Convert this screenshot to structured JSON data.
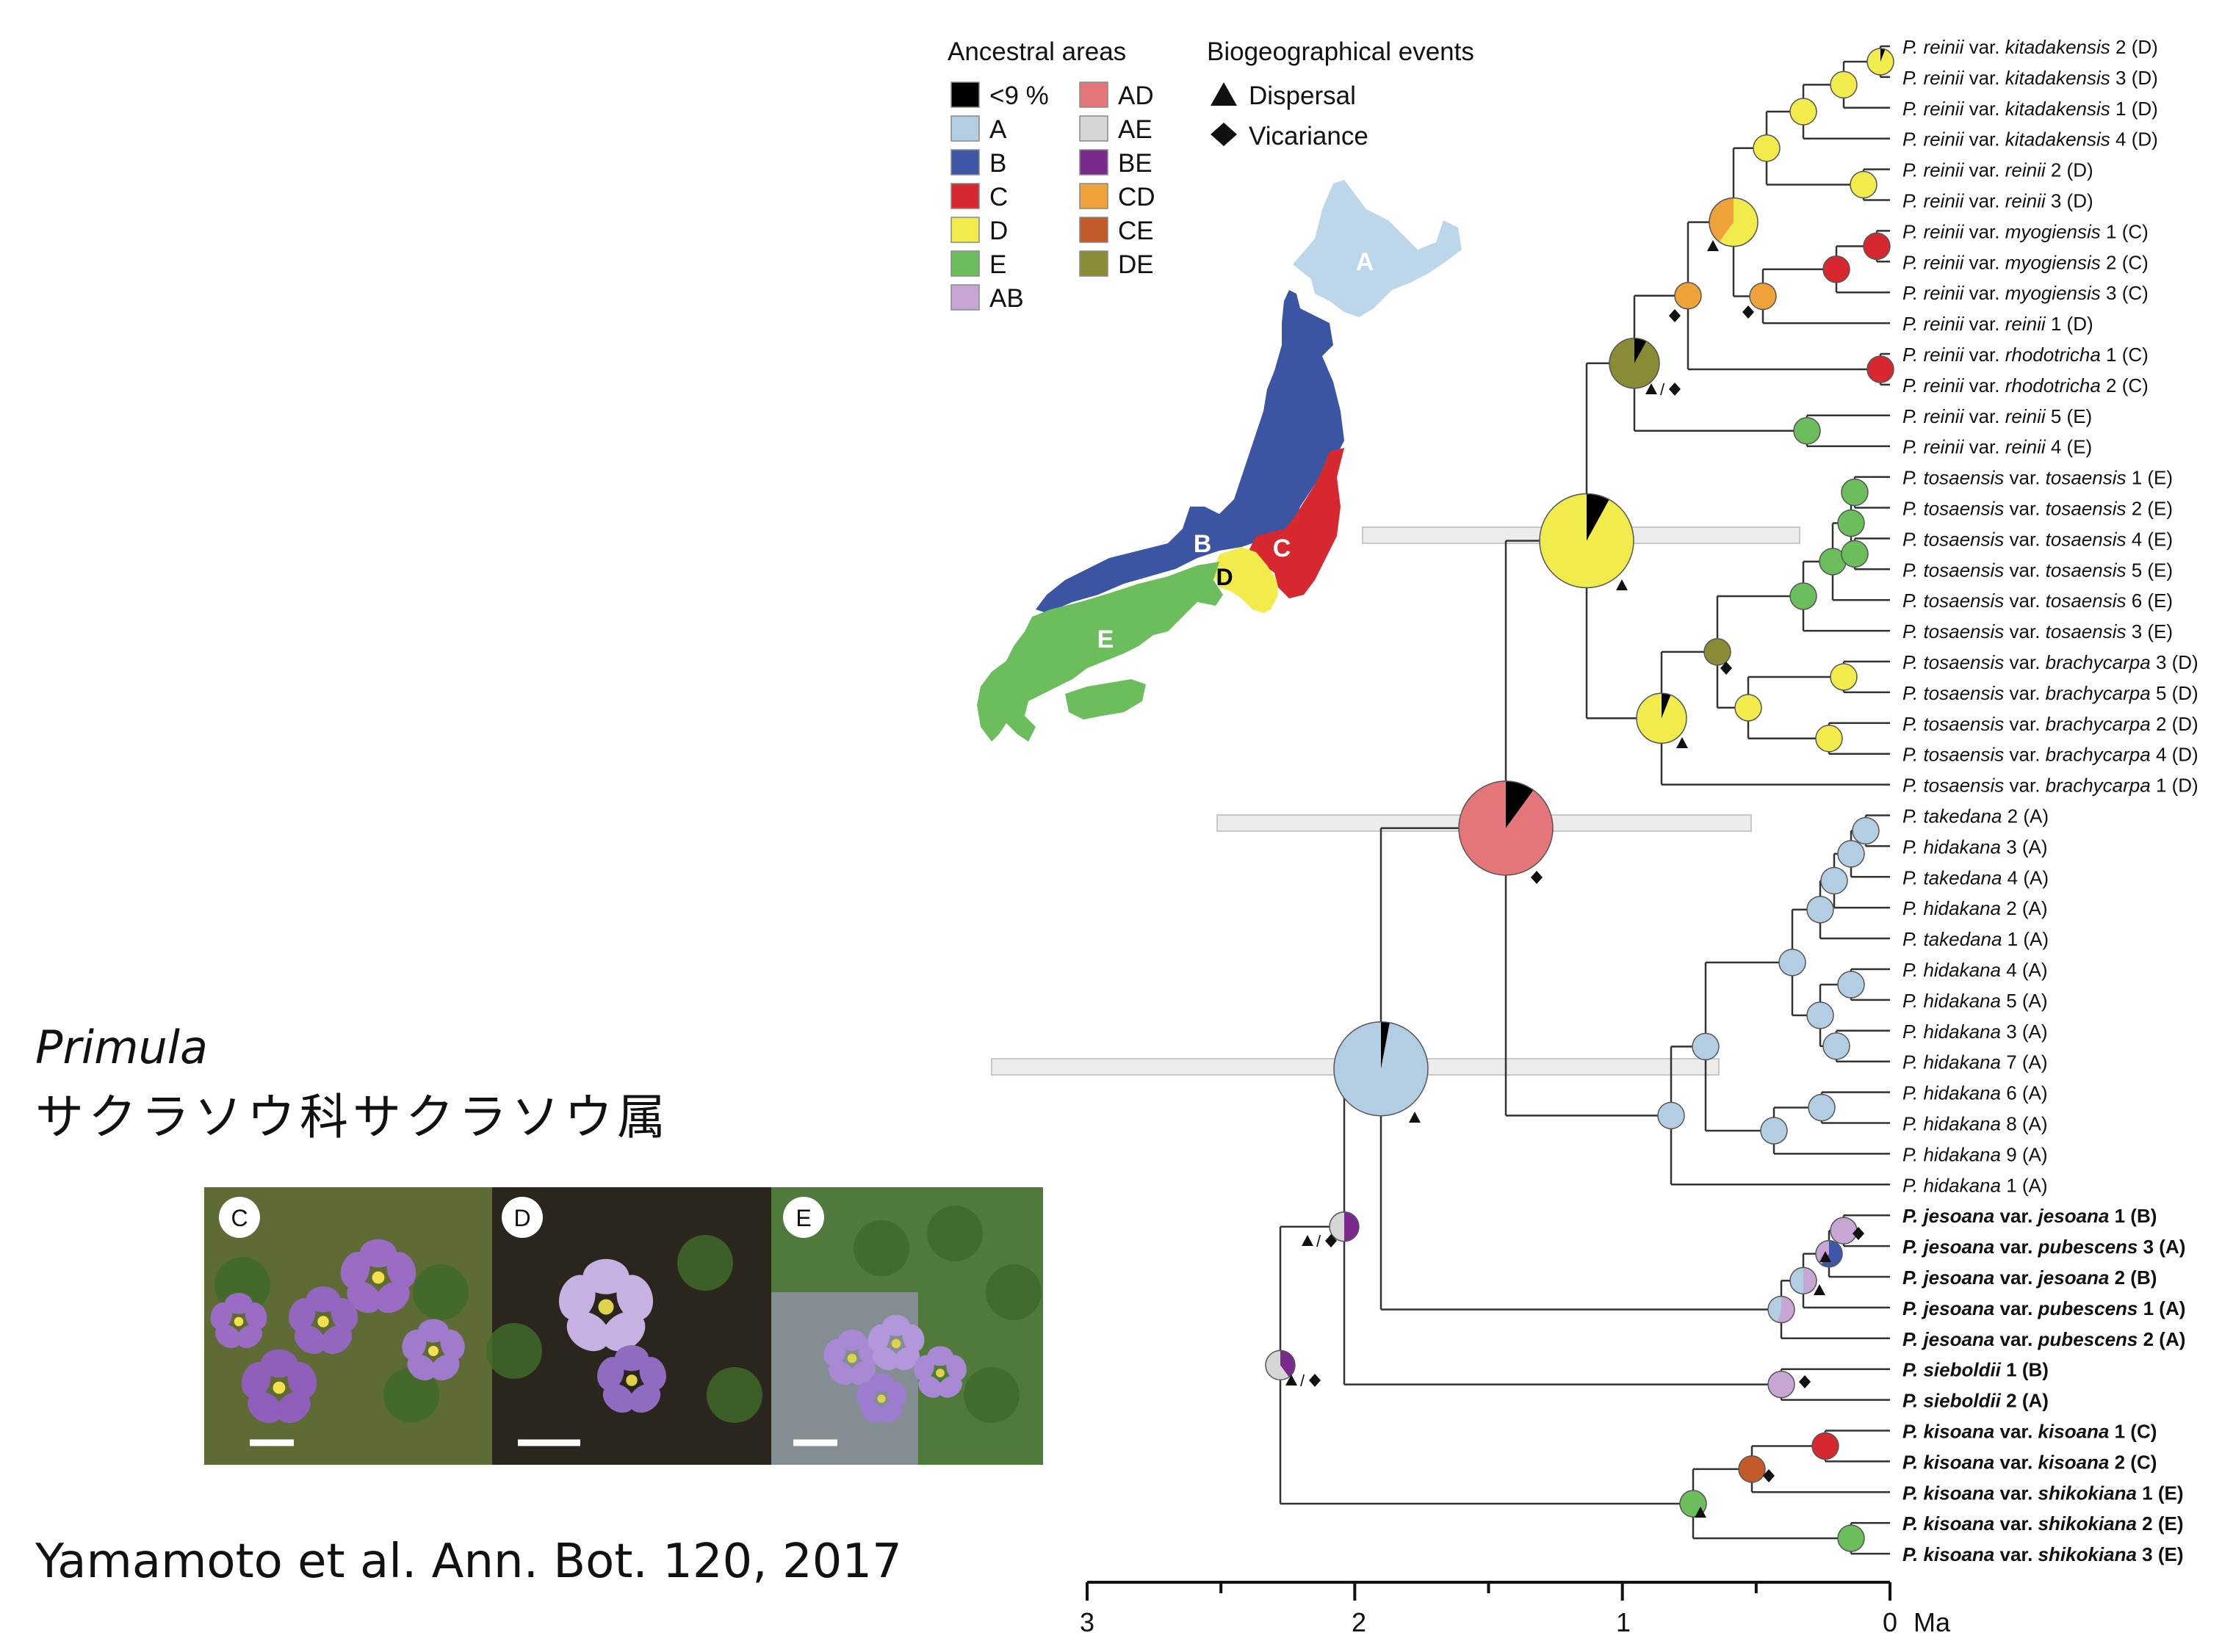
{
  "genus_title": "Primula",
  "japanese_title": "サクラソウ科サクラソウ属",
  "citation": "Yamamoto et al. Ann. Bot. 120, 2017",
  "legend_areas": {
    "title": "Ancestral areas",
    "items": [
      {
        "label": "<9 %",
        "color": "#000000"
      },
      {
        "label": "A",
        "color": "#b3cde3"
      },
      {
        "label": "B",
        "color": "#3f57a6"
      },
      {
        "label": "C",
        "color": "#d7282f"
      },
      {
        "label": "D",
        "color": "#f1ec4b"
      },
      {
        "label": "E",
        "color": "#6cbd5b"
      },
      {
        "label": "AB",
        "color": "#c7a6d4"
      },
      {
        "label": "AD",
        "color": "#e4767a"
      },
      {
        "label": "AE",
        "color": "#d6d6d6"
      },
      {
        "label": "BE",
        "color": "#7a2a8c"
      },
      {
        "label": "CD",
        "color": "#f0a23a"
      },
      {
        "label": "CE",
        "color": "#c25a2a"
      },
      {
        "label": "DE",
        "color": "#8a8b35"
      }
    ]
  },
  "legend_events": {
    "title": "Biogeographical events",
    "items": [
      {
        "label": "Dispersal",
        "symbol": "triangle"
      },
      {
        "label": "Vicariance",
        "symbol": "diamond"
      }
    ]
  },
  "map_labels": [
    "A",
    "B",
    "C",
    "D",
    "E"
  ],
  "photo_labels": [
    "C",
    "D",
    "E"
  ],
  "time_axis": {
    "ticks": [
      "3",
      "2",
      "1",
      "0"
    ],
    "unit": "Ma"
  },
  "slash": "/",
  "tips": [
    {
      "name": "P. reinii",
      "rest": " var. ",
      "var": "kitadakensis",
      "tail": " 2 (D)"
    },
    {
      "name": "P. reinii",
      "rest": " var. ",
      "var": "kitadakensis",
      "tail": " 3 (D)"
    },
    {
      "name": "P. reinii",
      "rest": " var. ",
      "var": "kitadakensis",
      "tail": " 1 (D)"
    },
    {
      "name": "P. reinii",
      "rest": " var. ",
      "var": "kitadakensis",
      "tail": " 4 (D)"
    },
    {
      "name": "P. reinii",
      "rest": " var. ",
      "var": "reinii",
      "tail": " 2 (D)"
    },
    {
      "name": "P. reinii",
      "rest": " var. ",
      "var": "reinii",
      "tail": " 3 (D)"
    },
    {
      "name": "P. reinii",
      "rest": " var. ",
      "var": "myogiensis",
      "tail": " 1 (C)"
    },
    {
      "name": "P. reinii",
      "rest": " var. ",
      "var": "myogiensis",
      "tail": " 2 (C)"
    },
    {
      "name": "P. reinii",
      "rest": " var. ",
      "var": "myogiensis",
      "tail": " 3 (C)"
    },
    {
      "name": "P. reinii",
      "rest": " var. ",
      "var": "reinii",
      "tail": " 1 (D)"
    },
    {
      "name": "P. reinii",
      "rest": " var. ",
      "var": "rhodotricha",
      "tail": " 1 (C)"
    },
    {
      "name": "P. reinii",
      "rest": " var. ",
      "var": "rhodotricha",
      "tail": " 2 (C)"
    },
    {
      "name": "P. reinii",
      "rest": " var. ",
      "var": "reinii",
      "tail": " 5 (E)"
    },
    {
      "name": "P. reinii",
      "rest": " var. ",
      "var": "reinii",
      "tail": " 4 (E)"
    },
    {
      "name": "P. tosaensis",
      "rest": " var. ",
      "var": "tosaensis",
      "tail": " 1 (E)"
    },
    {
      "name": "P. tosaensis",
      "rest": " var. ",
      "var": "tosaensis",
      "tail": " 2 (E)"
    },
    {
      "name": "P. tosaensis",
      "rest": " var. ",
      "var": "tosaensis",
      "tail": " 4 (E)"
    },
    {
      "name": "P. tosaensis",
      "rest": " var. ",
      "var": "tosaensis",
      "tail": " 5 (E)"
    },
    {
      "name": "P. tosaensis",
      "rest": " var. ",
      "var": "tosaensis",
      "tail": " 6 (E)"
    },
    {
      "name": "P. tosaensis",
      "rest": " var. ",
      "var": "tosaensis",
      "tail": " 3 (E)"
    },
    {
      "name": "P. tosaensis",
      "rest": " var. ",
      "var": "brachycarpa",
      "tail": " 3 (D)"
    },
    {
      "name": "P. tosaensis",
      "rest": " var. ",
      "var": "brachycarpa",
      "tail": " 5 (D)"
    },
    {
      "name": "P. tosaensis",
      "rest": " var. ",
      "var": "brachycarpa",
      "tail": " 2 (D)"
    },
    {
      "name": "P. tosaensis",
      "rest": " var. ",
      "var": "brachycarpa",
      "tail": " 4 (D)"
    },
    {
      "name": "P. tosaensis",
      "rest": " var. ",
      "var": "brachycarpa",
      "tail": " 1 (D)"
    },
    {
      "name": "P. takedana",
      "rest": "",
      "var": "",
      "tail": " 2 (A)"
    },
    {
      "name": "P. hidakana",
      "rest": "",
      "var": "",
      "tail": " 3 (A)"
    },
    {
      "name": "P. takedana",
      "rest": "",
      "var": "",
      "tail": " 4 (A)"
    },
    {
      "name": "P. hidakana",
      "rest": "",
      "var": "",
      "tail": " 2 (A)"
    },
    {
      "name": "P. takedana",
      "rest": "",
      "var": "",
      "tail": " 1 (A)"
    },
    {
      "name": "P. hidakana",
      "rest": "",
      "var": "",
      "tail": " 4 (A)"
    },
    {
      "name": "P. hidakana",
      "rest": "",
      "var": "",
      "tail": " 5 (A)"
    },
    {
      "name": "P. hidakana",
      "rest": "",
      "var": "",
      "tail": " 3 (A)"
    },
    {
      "name": "P. hidakana",
      "rest": "",
      "var": "",
      "tail": " 7 (A)"
    },
    {
      "name": "P. hidakana",
      "rest": "",
      "var": "",
      "tail": " 6 (A)"
    },
    {
      "name": "P. hidakana",
      "rest": "",
      "var": "",
      "tail": " 8 (A)"
    },
    {
      "name": "P. hidakana",
      "rest": "",
      "var": "",
      "tail": " 9 (A)"
    },
    {
      "name": "P. hidakana",
      "rest": "",
      "var": "",
      "tail": " 1 (A)"
    },
    {
      "name": "P. jesoana",
      "rest": " var. ",
      "var": "jesoana",
      "tail": " 1 (B)",
      "bold": true
    },
    {
      "name": "P. jesoana",
      "rest": " var. ",
      "var": "pubescens",
      "tail": " 3 (A)",
      "bold": true
    },
    {
      "name": "P. jesoana",
      "rest": " var. ",
      "var": "jesoana",
      "tail": " 2 (B)",
      "bold": true
    },
    {
      "name": "P. jesoana",
      "rest": " var. ",
      "var": "pubescens",
      "tail": " 1 (A)",
      "bold": true
    },
    {
      "name": "P. jesoana",
      "rest": " var. ",
      "var": "pubescens",
      "tail": " 2 (A)",
      "bold": true
    },
    {
      "name": "P. sieboldii",
      "rest": "",
      "var": "",
      "tail": " 1 (B)",
      "bold": true
    },
    {
      "name": "P. sieboldii",
      "rest": "",
      "var": "",
      "tail": " 2 (A)",
      "bold": true
    },
    {
      "name": "P. kisoana",
      "rest": " var. ",
      "var": "kisoana",
      "tail": " 1 (C)",
      "bold": true
    },
    {
      "name": "P. kisoana",
      "rest": " var. ",
      "var": "kisoana",
      "tail": " 2 (C)",
      "bold": true
    },
    {
      "name": "P. kisoana",
      "rest": " var. ",
      "var": "shikokiana",
      "tail": " 1 (E)",
      "bold": true
    },
    {
      "name": "P. kisoana",
      "rest": " var. ",
      "var": "shikokiana",
      "tail": " 2 (E)",
      "bold": true
    },
    {
      "name": "P. kisoana",
      "rest": " var. ",
      "var": "shikokiana",
      "tail": " 3 (E)",
      "bold": true
    }
  ]
}
